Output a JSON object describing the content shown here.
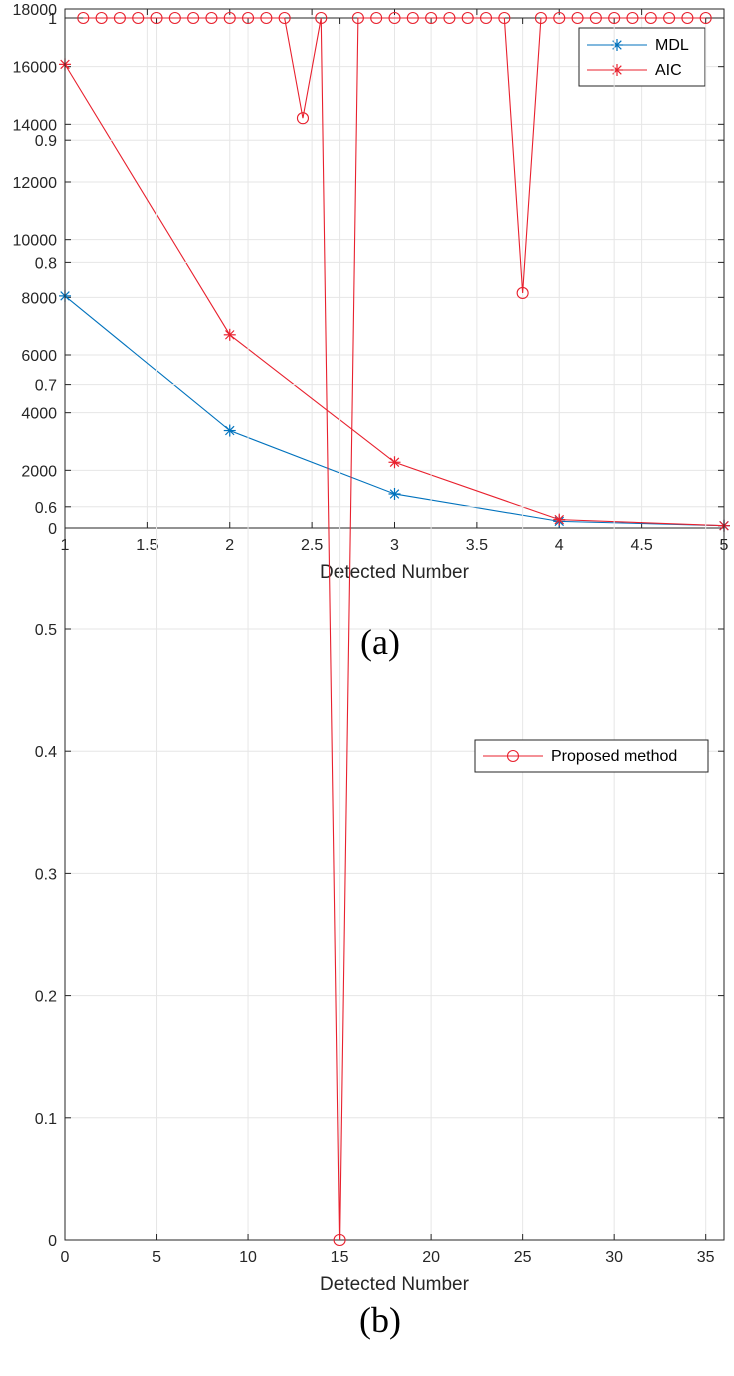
{
  "chart_data": [
    {
      "type": "line",
      "caption": "(a)",
      "title": "",
      "xlabel": "Detected Number",
      "ylabel": "",
      "xlim": [
        1,
        5
      ],
      "ylim": [
        0,
        18000
      ],
      "xticks": [
        1,
        1.5,
        2,
        2.5,
        3,
        3.5,
        4,
        4.5,
        5
      ],
      "yticks": [
        0,
        2000,
        4000,
        6000,
        8000,
        10000,
        12000,
        14000,
        16000,
        18000
      ],
      "grid": true,
      "legend": "top-right",
      "x": [
        1,
        2,
        3,
        4,
        5
      ],
      "series": [
        {
          "name": "MDL",
          "color": "#0072BD",
          "marker": "asterisk",
          "values": [
            8050,
            3380,
            1180,
            230,
            80
          ]
        },
        {
          "name": "AIC",
          "color": "#E8212E",
          "marker": "asterisk",
          "values": [
            16080,
            6700,
            2280,
            290,
            80
          ]
        }
      ]
    },
    {
      "type": "line",
      "caption": "(b)",
      "title": "",
      "xlabel": "Detected Number",
      "ylabel": "",
      "xlim": [
        0,
        36
      ],
      "ylim": [
        0,
        1
      ],
      "xticks": [
        0,
        5,
        10,
        15,
        20,
        25,
        30,
        35
      ],
      "yticks": [
        0,
        0.1,
        0.2,
        0.3,
        0.4,
        0.5,
        0.6,
        0.7,
        0.8,
        0.9,
        1
      ],
      "grid": true,
      "legend": "top-right",
      "x": [
        1,
        2,
        3,
        4,
        5,
        6,
        7,
        8,
        9,
        10,
        11,
        12,
        13,
        14,
        15,
        16,
        17,
        18,
        19,
        20,
        21,
        22,
        23,
        24,
        25,
        26,
        27,
        28,
        29,
        30,
        31,
        32,
        33,
        34,
        35
      ],
      "series": [
        {
          "name": "Proposed method",
          "color": "#E8212E",
          "marker": "circle",
          "values": [
            1,
            1,
            1,
            1,
            1,
            1,
            1,
            1,
            1,
            1,
            1,
            1,
            0.918,
            1,
            0.0,
            1,
            1,
            1,
            1,
            1,
            1,
            1,
            1,
            1,
            0.775,
            1,
            1,
            1,
            1,
            1,
            1,
            1,
            1,
            1,
            1
          ]
        }
      ]
    }
  ]
}
